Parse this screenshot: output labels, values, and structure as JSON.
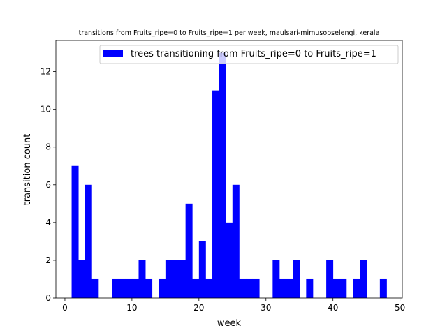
{
  "chart_data": {
    "type": "bar",
    "title": "transitions from Fruits_ripe=0 to Fruits_ripe=1 per week, maulsari-mimusopselengi, kerala",
    "xlabel": "week",
    "ylabel": "transition count",
    "xlim": [
      -1.35,
      50.35
    ],
    "ylim": [
      0,
      13.65
    ],
    "xticks": [
      0,
      10,
      20,
      30,
      40,
      50
    ],
    "yticks": [
      0,
      2,
      4,
      6,
      8,
      10,
      12
    ],
    "grid": false,
    "legend_position": "top-right",
    "series": [
      {
        "name": "trees transitioning from Fruits_ripe=0 to Fruits_ripe=1",
        "color": "#0000ff",
        "bin_width": 1,
        "x": [
          1,
          2,
          3,
          4,
          5,
          6,
          7,
          8,
          9,
          10,
          11,
          12,
          13,
          14,
          15,
          16,
          17,
          18,
          19,
          20,
          21,
          22,
          23,
          24,
          25,
          26,
          27,
          28,
          29,
          30,
          31,
          32,
          33,
          34,
          35,
          36,
          37,
          38,
          39,
          40,
          41,
          42,
          43,
          44,
          45,
          46,
          47,
          48
        ],
        "values": [
          7,
          2,
          6,
          1,
          0,
          0,
          1,
          1,
          1,
          1,
          2,
          1,
          0,
          1,
          2,
          2,
          2,
          5,
          1,
          3,
          1,
          11,
          13,
          4,
          6,
          1,
          1,
          1,
          0,
          0,
          2,
          1,
          1,
          2,
          0,
          1,
          0,
          0,
          2,
          1,
          1,
          0,
          1,
          2,
          0,
          0,
          1,
          0
        ]
      }
    ]
  }
}
